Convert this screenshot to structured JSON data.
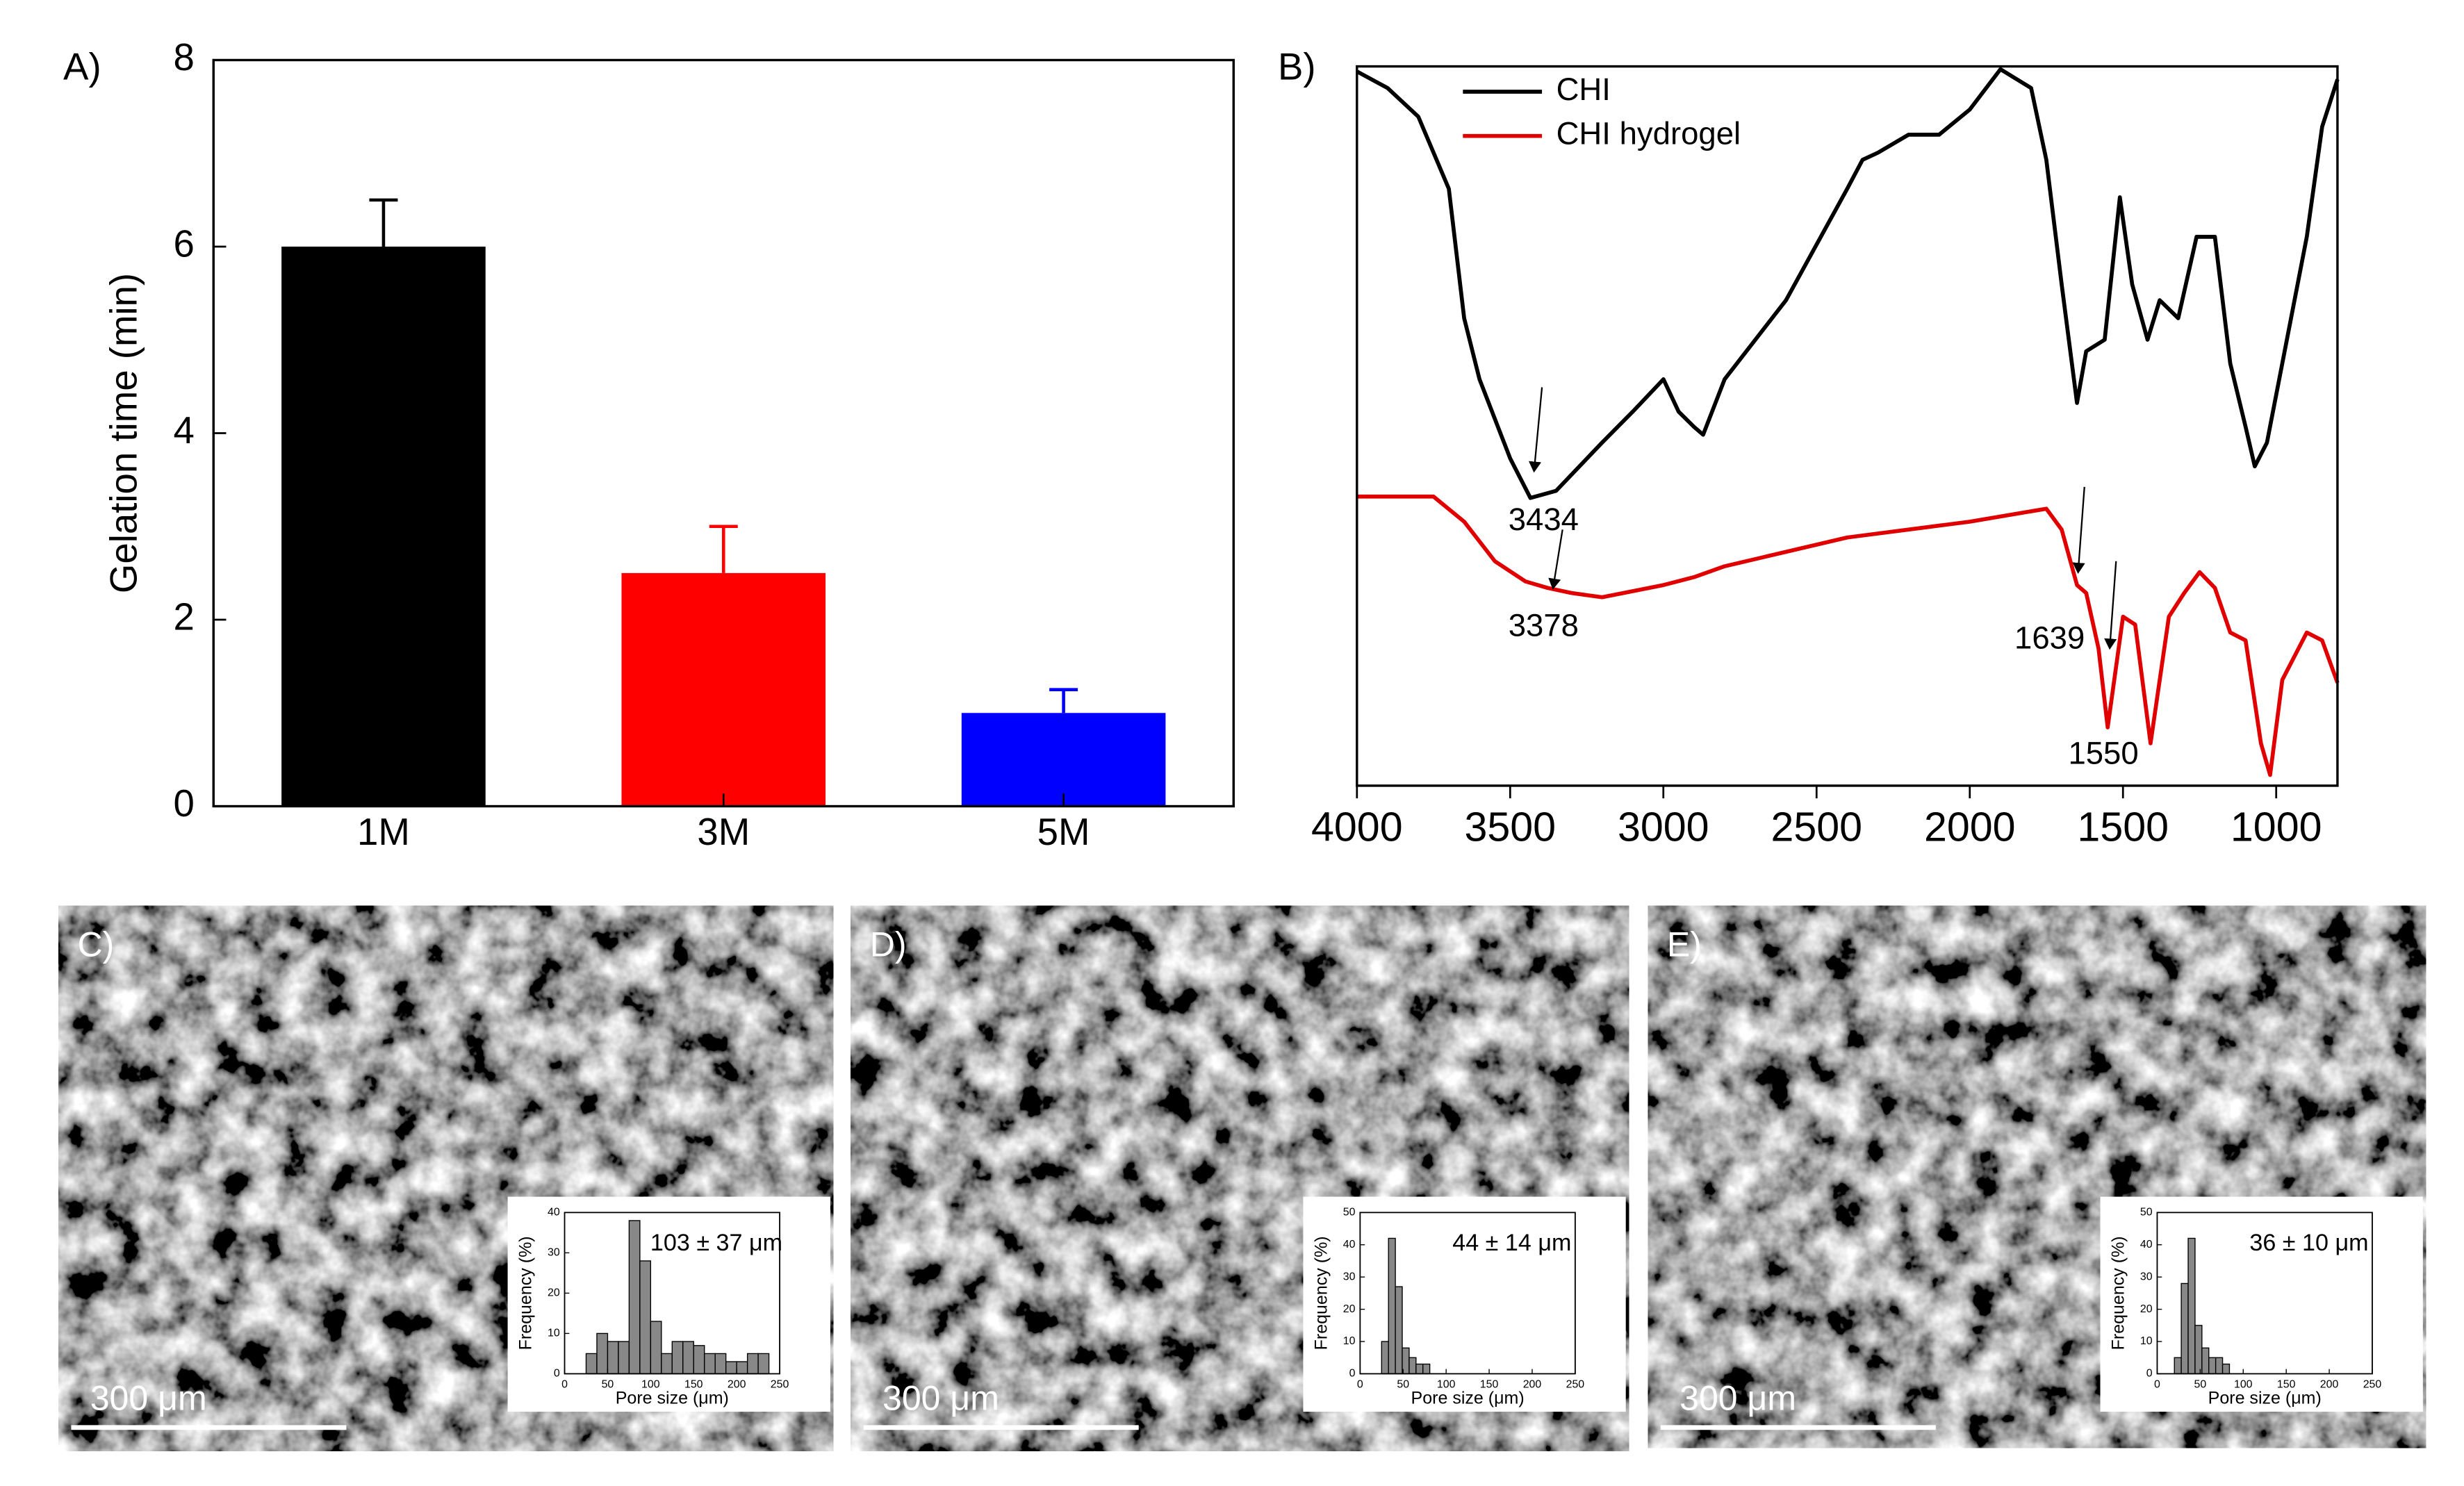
{
  "chart_data": [
    {
      "type": "bar",
      "label": "A)",
      "ylabel": "Gelation time (min)",
      "categories": [
        "1M",
        "3M",
        "5M"
      ],
      "values": [
        6,
        2.5,
        1
      ],
      "errors": [
        0.5,
        0.5,
        0.25
      ],
      "colors": [
        "#000000",
        "#ff0000",
        "#0000ff"
      ],
      "ylim": [
        0,
        8
      ],
      "yticks": [
        0,
        2,
        4,
        6,
        8
      ]
    },
    {
      "type": "line",
      "label": "B)",
      "xlim": [
        4000,
        800
      ],
      "xticks": [
        4000,
        3500,
        3000,
        2500,
        2000,
        1500,
        1000
      ],
      "ylim": [
        0,
        100
      ],
      "legend": "upper left",
      "annotations": [
        "3434",
        "3378",
        "1639",
        "1550"
      ],
      "series": [
        {
          "name": "CHI",
          "color": "#000000",
          "x": [
            4000,
            3900,
            3800,
            3700,
            3650,
            3600,
            3500,
            3434,
            3350,
            3200,
            3100,
            3000,
            2950,
            2900,
            2870,
            2800,
            2600,
            2400,
            2350,
            2300,
            2200,
            2100,
            2000,
            1900,
            1800,
            1750,
            1700,
            1650,
            1620,
            1560,
            1510,
            1470,
            1420,
            1380,
            1320,
            1260,
            1200,
            1150,
            1100,
            1070,
            1030,
            980,
            900,
            850,
            800
          ],
          "values": [
            99.3,
            97,
            93,
            83,
            65,
            56.5,
            45.5,
            40,
            41,
            47.7,
            52,
            56.5,
            52,
            49.9,
            48.8,
            56.5,
            67.5,
            83,
            87,
            88,
            90.5,
            90.5,
            94,
            99.6,
            97,
            87,
            69.7,
            53.2,
            60.4,
            62,
            81.8,
            69.7,
            62,
            67.5,
            65,
            76.3,
            76.3,
            58.7,
            49.9,
            44.4,
            47.7,
            58.7,
            76.3,
            91.6,
            98.2
          ]
        },
        {
          "name": "CHI hydrogel",
          "color": "#e00000",
          "x": [
            4000,
            3750,
            3650,
            3550,
            3450,
            3378,
            3300,
            3200,
            3000,
            2900,
            2800,
            2400,
            2000,
            1750,
            1700,
            1650,
            1620,
            1580,
            1550,
            1500,
            1460,
            1410,
            1350,
            1300,
            1250,
            1200,
            1150,
            1100,
            1050,
            1020,
            980,
            900,
            850,
            800
          ],
          "values": [
            40.2,
            40.2,
            36.7,
            31.2,
            28.4,
            27.5,
            26.8,
            26.2,
            27.9,
            29,
            30.5,
            34.5,
            36.7,
            38.5,
            35.6,
            27.9,
            26.8,
            19.1,
            8.1,
            23.5,
            22.4,
            5.9,
            23.5,
            26.8,
            29.7,
            27.5,
            21.3,
            20.2,
            5.9,
            1.5,
            14.7,
            21.3,
            20.2,
            14.3
          ]
        }
      ]
    },
    {
      "type": "histogram",
      "label": "C)",
      "scale_bar": "300 μm",
      "title": "103 ± 37 μm",
      "xlabel": "Pore size (μm)",
      "ylabel": "Frequency (%)",
      "color": "#888888",
      "bins": [
        25,
        37.5,
        50,
        62.5,
        75,
        87.5,
        100,
        112.5,
        125,
        137.5,
        150,
        162.5,
        175,
        187.5,
        200,
        212.5,
        225,
        237.5
      ],
      "values": [
        5,
        10,
        8,
        8,
        38,
        28,
        13,
        5,
        8,
        8,
        7,
        5,
        5,
        3,
        3,
        5,
        5
      ],
      "xlim": [
        0,
        250
      ],
      "xticks": [
        0,
        50,
        100,
        150,
        200,
        250
      ],
      "ylim": [
        0,
        40
      ],
      "yticks": [
        0,
        10,
        20,
        30,
        40
      ]
    },
    {
      "type": "histogram",
      "label": "D)",
      "scale_bar": "300 μm",
      "title": "44 ± 14 μm",
      "xlabel": "Pore size (μm)",
      "ylabel": "Frequency (%)",
      "color": "#888888",
      "bins": [
        25,
        33,
        41,
        49,
        57,
        65,
        73,
        81
      ],
      "values": [
        10,
        42,
        27,
        8,
        5,
        3,
        3
      ],
      "xlim": [
        0,
        250
      ],
      "xticks": [
        0,
        50,
        100,
        150,
        200,
        250
      ],
      "ylim": [
        0,
        50
      ],
      "yticks": [
        0,
        10,
        20,
        30,
        40,
        50
      ]
    },
    {
      "type": "histogram",
      "label": "E)",
      "scale_bar": "300 μm",
      "title": "36 ± 10 μm",
      "xlabel": "Pore size (μm)",
      "ylabel": "Frequency (%)",
      "color": "#888888",
      "bins": [
        20,
        28,
        36,
        44,
        52,
        60,
        68,
        76,
        84
      ],
      "values": [
        5,
        28,
        42,
        15,
        8,
        5,
        5,
        3
      ],
      "xlim": [
        0,
        250
      ],
      "xticks": [
        0,
        50,
        100,
        150,
        200,
        250
      ],
      "ylim": [
        0,
        50
      ],
      "yticks": [
        0,
        10,
        20,
        30,
        40,
        50
      ]
    }
  ]
}
